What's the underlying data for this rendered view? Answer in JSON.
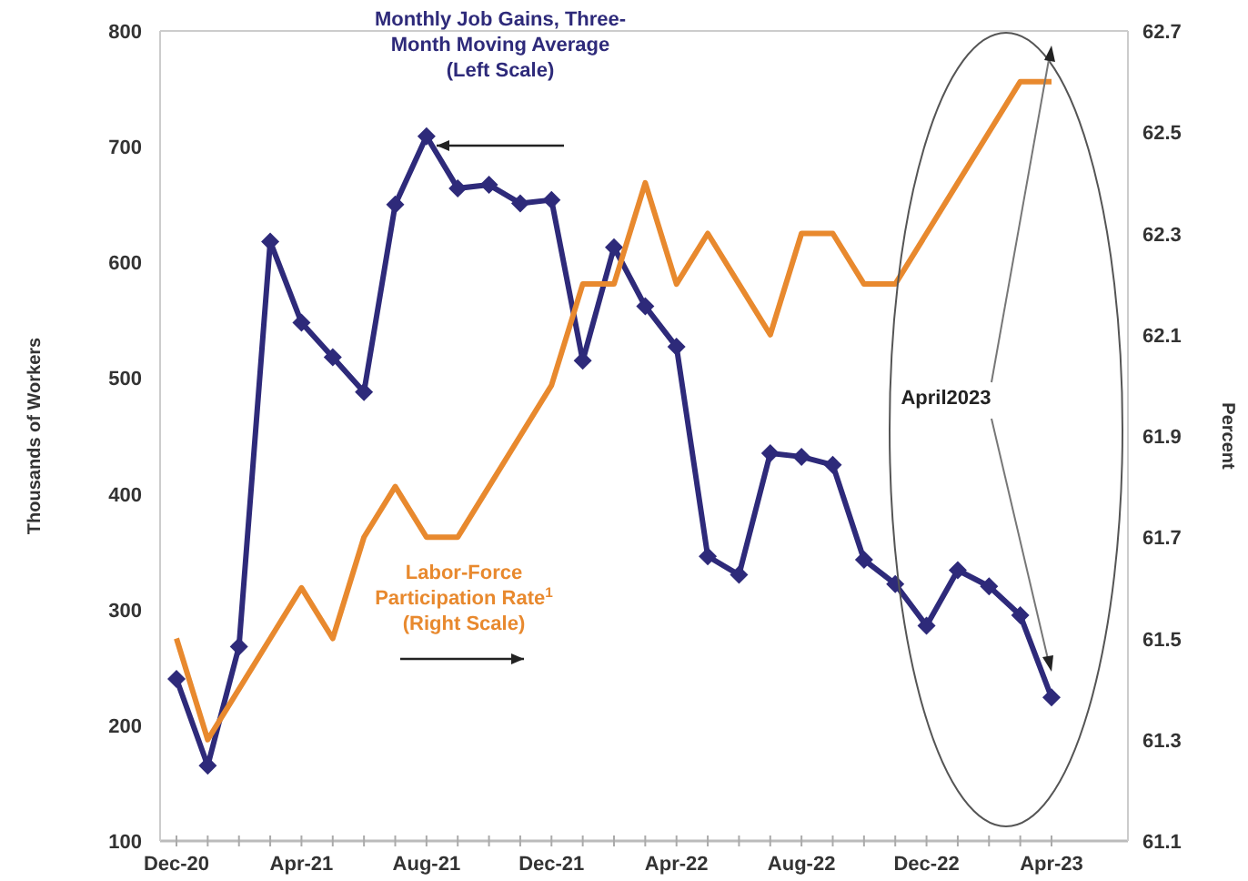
{
  "chart_data": {
    "type": "line",
    "ylabel": "Thousands of Workers",
    "y2label": "Percent",
    "categories": [
      "Dec-20",
      null,
      null,
      null,
      "Apr-21",
      null,
      null,
      null,
      "Aug-21",
      null,
      null,
      null,
      "Dec-21",
      null,
      null,
      null,
      "Apr-22",
      null,
      null,
      null,
      "Aug-22",
      null,
      null,
      null,
      "Dec-22",
      null,
      null,
      null,
      "Apr-23"
    ],
    "ylim": [
      100,
      800
    ],
    "yticks": [
      100,
      200,
      300,
      400,
      500,
      600,
      700,
      800
    ],
    "y2lim": [
      61.1,
      62.7
    ],
    "y2ticks": [
      61.1,
      61.3,
      61.5,
      61.7,
      61.9,
      62.1,
      62.3,
      62.5,
      62.7
    ],
    "grid": false,
    "series": [
      {
        "name": "Monthly Job Gains, Three-Month Moving Average (Left Scale)",
        "color": "#2e2a7a",
        "marker": "diamond",
        "values": [
          240,
          165,
          268,
          618,
          548,
          518,
          488,
          650,
          709,
          664,
          667,
          651,
          654,
          515,
          613,
          562,
          527,
          346,
          330,
          435,
          432,
          425,
          343,
          322,
          286,
          334,
          320,
          295,
          224
        ]
      },
      {
        "name": "Labor-Force Participation Rate$^{1}$ (Right Scale)",
        "color": "#e8892e",
        "marker": "none",
        "axis": "y2",
        "values": [
          61.5,
          61.3,
          61.4,
          61.5,
          61.6,
          61.5,
          61.7,
          61.8,
          61.7,
          61.7,
          61.8,
          61.9,
          62.0,
          62.2,
          62.2,
          62.4,
          62.2,
          62.3,
          62.2,
          62.1,
          62.3,
          62.3,
          62.2,
          62.2,
          62.3,
          62.4,
          62.5,
          62.6,
          62.6
        ]
      }
    ],
    "annotations": [
      "April2023"
    ]
  }
}
